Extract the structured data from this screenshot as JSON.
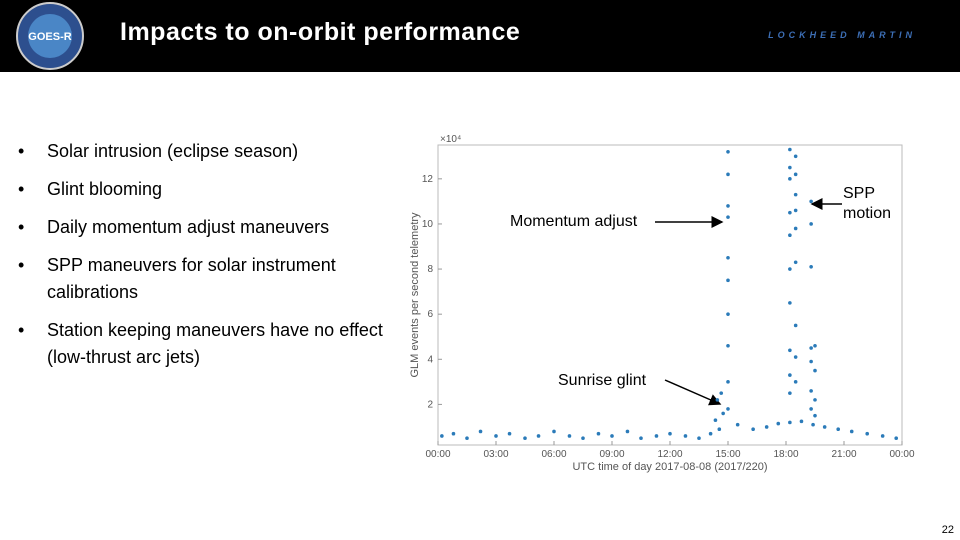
{
  "header": {
    "title": "Impacts to on-orbit performance",
    "logo_text": "GOES-R",
    "company": "LOCKHEED MARTIN"
  },
  "bullets": [
    "Solar intrusion (eclipse season)",
    "Glint blooming",
    "Daily momentum adjust maneuvers",
    "SPP maneuvers for solar instrument calibrations",
    "Station keeping maneuvers have no effect (low-thrust arc jets)"
  ],
  "page_number": "22",
  "chart_data": {
    "type": "scatter",
    "xlabel": "UTC time of day 2017-08-08 (2017/220)",
    "ylabel": "GLM events per second telemetry",
    "y_exponent": "×10⁴",
    "annotations": [
      "Momentum adjust",
      "SPP motion",
      "Sunrise glint"
    ],
    "color": "#2b7bb9",
    "xlim": [
      0,
      24
    ],
    "ylim": [
      0.2,
      13.5
    ],
    "xticks": [
      {
        "value": 0,
        "label": "00:00"
      },
      {
        "value": 3,
        "label": "03:00"
      },
      {
        "value": 6,
        "label": "06:00"
      },
      {
        "value": 9,
        "label": "09:00"
      },
      {
        "value": 12,
        "label": "12:00"
      },
      {
        "value": 15,
        "label": "15:00"
      },
      {
        "value": 18,
        "label": "18:00"
      },
      {
        "value": 21,
        "label": "21:00"
      },
      {
        "value": 24,
        "label": "00:00"
      }
    ],
    "yticks": [
      2,
      4,
      6,
      8,
      10,
      12
    ],
    "x": [
      0.2,
      0.8,
      1.5,
      2.2,
      3,
      3.7,
      4.5,
      5.2,
      6,
      6.8,
      7.5,
      8.3,
      9,
      9.8,
      10.5,
      11.3,
      12,
      12.8,
      13.5,
      14.1,
      14.35,
      14.45,
      14.55,
      14.65,
      14.75,
      15,
      15,
      15,
      15,
      15,
      15,
      15,
      15,
      15,
      15,
      15.5,
      16.3,
      17,
      17.6,
      18.2,
      18.8,
      19.4,
      20,
      20.7,
      21.4,
      22.2,
      23,
      23.7,
      18.2,
      18.2,
      18.2,
      18.2,
      18.2,
      18.2,
      18.2,
      18.2,
      18.2,
      18.2,
      18.5,
      18.5,
      18.5,
      18.5,
      18.5,
      18.5,
      18.5,
      18.5,
      18.5,
      19.3,
      19.3,
      19.3,
      19.3,
      19.3,
      19.3,
      19.3,
      19.5,
      19.5,
      19.5,
      19.5
    ],
    "values": [
      0.6,
      0.7,
      0.5,
      0.8,
      0.6,
      0.7,
      0.5,
      0.6,
      0.8,
      0.6,
      0.5,
      0.7,
      0.6,
      0.8,
      0.5,
      0.6,
      0.7,
      0.6,
      0.5,
      0.7,
      1.3,
      2.2,
      0.9,
      2.5,
      1.6,
      1.8,
      3.0,
      4.6,
      6.0,
      7.5,
      8.5,
      10.3,
      10.8,
      12.2,
      13.2,
      1.1,
      0.9,
      1.0,
      1.15,
      1.2,
      1.25,
      1.1,
      1.0,
      0.9,
      0.8,
      0.7,
      0.6,
      0.5,
      2.5,
      3.3,
      4.4,
      6.5,
      8.0,
      9.5,
      10.5,
      12.0,
      12.5,
      13.3,
      3.0,
      4.1,
      5.5,
      8.3,
      9.8,
      10.6,
      11.3,
      12.2,
      13.0,
      1.8,
      2.6,
      3.9,
      4.5,
      8.1,
      10.0,
      11.0,
      1.5,
      2.2,
      3.5,
      4.6
    ]
  }
}
